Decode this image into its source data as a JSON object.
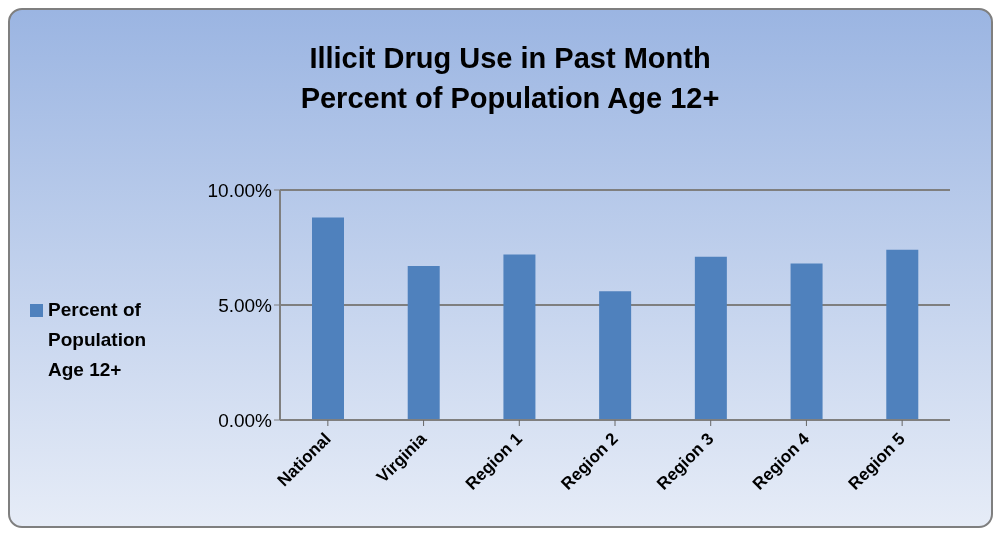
{
  "chart_data": {
    "type": "bar",
    "title": "Illicit Drug Use in Past Month",
    "subtitle": "Percent of Population Age 12+",
    "categories": [
      "National",
      "Virginia",
      "Region 1",
      "Region 2",
      "Region 3",
      "Region 4",
      "Region 5"
    ],
    "series": [
      {
        "name": "Percent of Population Age 12+",
        "color": "#4f81bd",
        "values": [
          8.8,
          6.7,
          7.2,
          5.6,
          7.1,
          6.8,
          7.4
        ]
      }
    ],
    "ylim": [
      0,
      10
    ],
    "yticks": [
      {
        "value": 0,
        "label": "0.00%"
      },
      {
        "value": 5,
        "label": "5.00%"
      },
      {
        "value": 10,
        "label": "10.00%"
      }
    ],
    "grid": "y",
    "legend": "left"
  }
}
